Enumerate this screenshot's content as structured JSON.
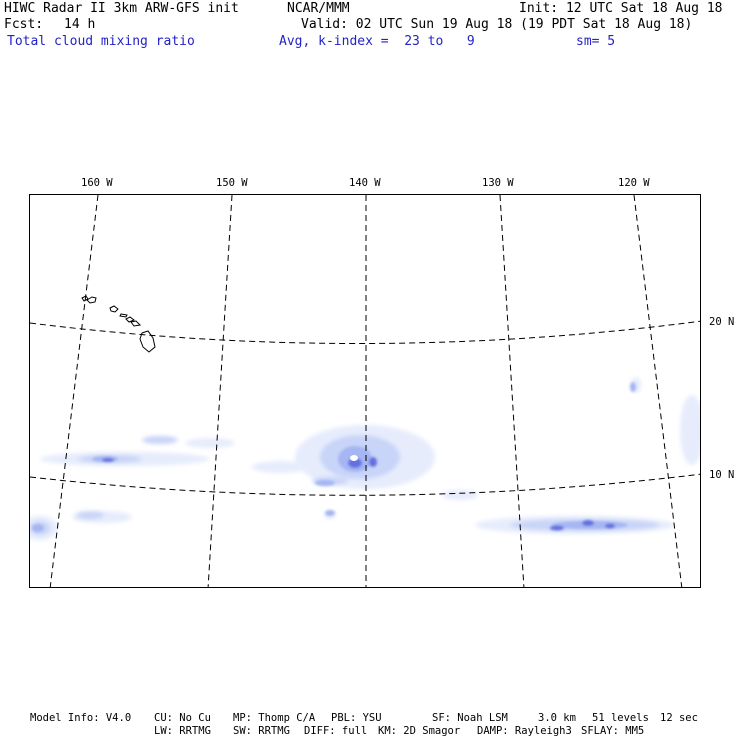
{
  "header": {
    "title": "HIWC Radar II 3km ARW-GFS init",
    "org": "NCAR/MMM",
    "init": "Init: 12 UTC Sat 18 Aug 18",
    "fcst_label": "Fcst:",
    "fcst_value": "14 h",
    "valid": "Valid: 02 UTC Sun 19 Aug 18 (19 PDT Sat 18 Aug 18)",
    "field": "Total cloud mixing ratio",
    "avg": "Avg, k-index =  23 to   9",
    "sm": "sm= 5"
  },
  "map": {
    "lon_labels": [
      "160 W",
      "150 W",
      "140 W",
      "130 W",
      "120 W"
    ],
    "lat_labels": [
      "20 N",
      "10 N"
    ],
    "colors": {
      "frame": "#000000",
      "grid": "#000000",
      "coast": "#000000",
      "cloud_light": "#e6ecfc",
      "cloud_mid": "#c8d4f8",
      "cloud_strong": "#a6b6f2",
      "cloud_core": "#6470e0"
    }
  },
  "footer": {
    "line1": {
      "model": "Model Info: V4.0",
      "cu": "CU: No Cu",
      "mp": "MP: Thomp C/A",
      "pbl": "PBL: YSU",
      "sf": "SF: Noah LSM",
      "res": "3.0 km",
      "levels": "51 levels",
      "dt": "12 sec"
    },
    "line2": {
      "lw": "LW: RRTMG",
      "sw": "SW: RRTMG",
      "diff": "DIFF: full",
      "km": "KM: 2D Smagor",
      "damp": "DAMP: Rayleigh3",
      "sflay": "SFLAY: MM5"
    }
  }
}
